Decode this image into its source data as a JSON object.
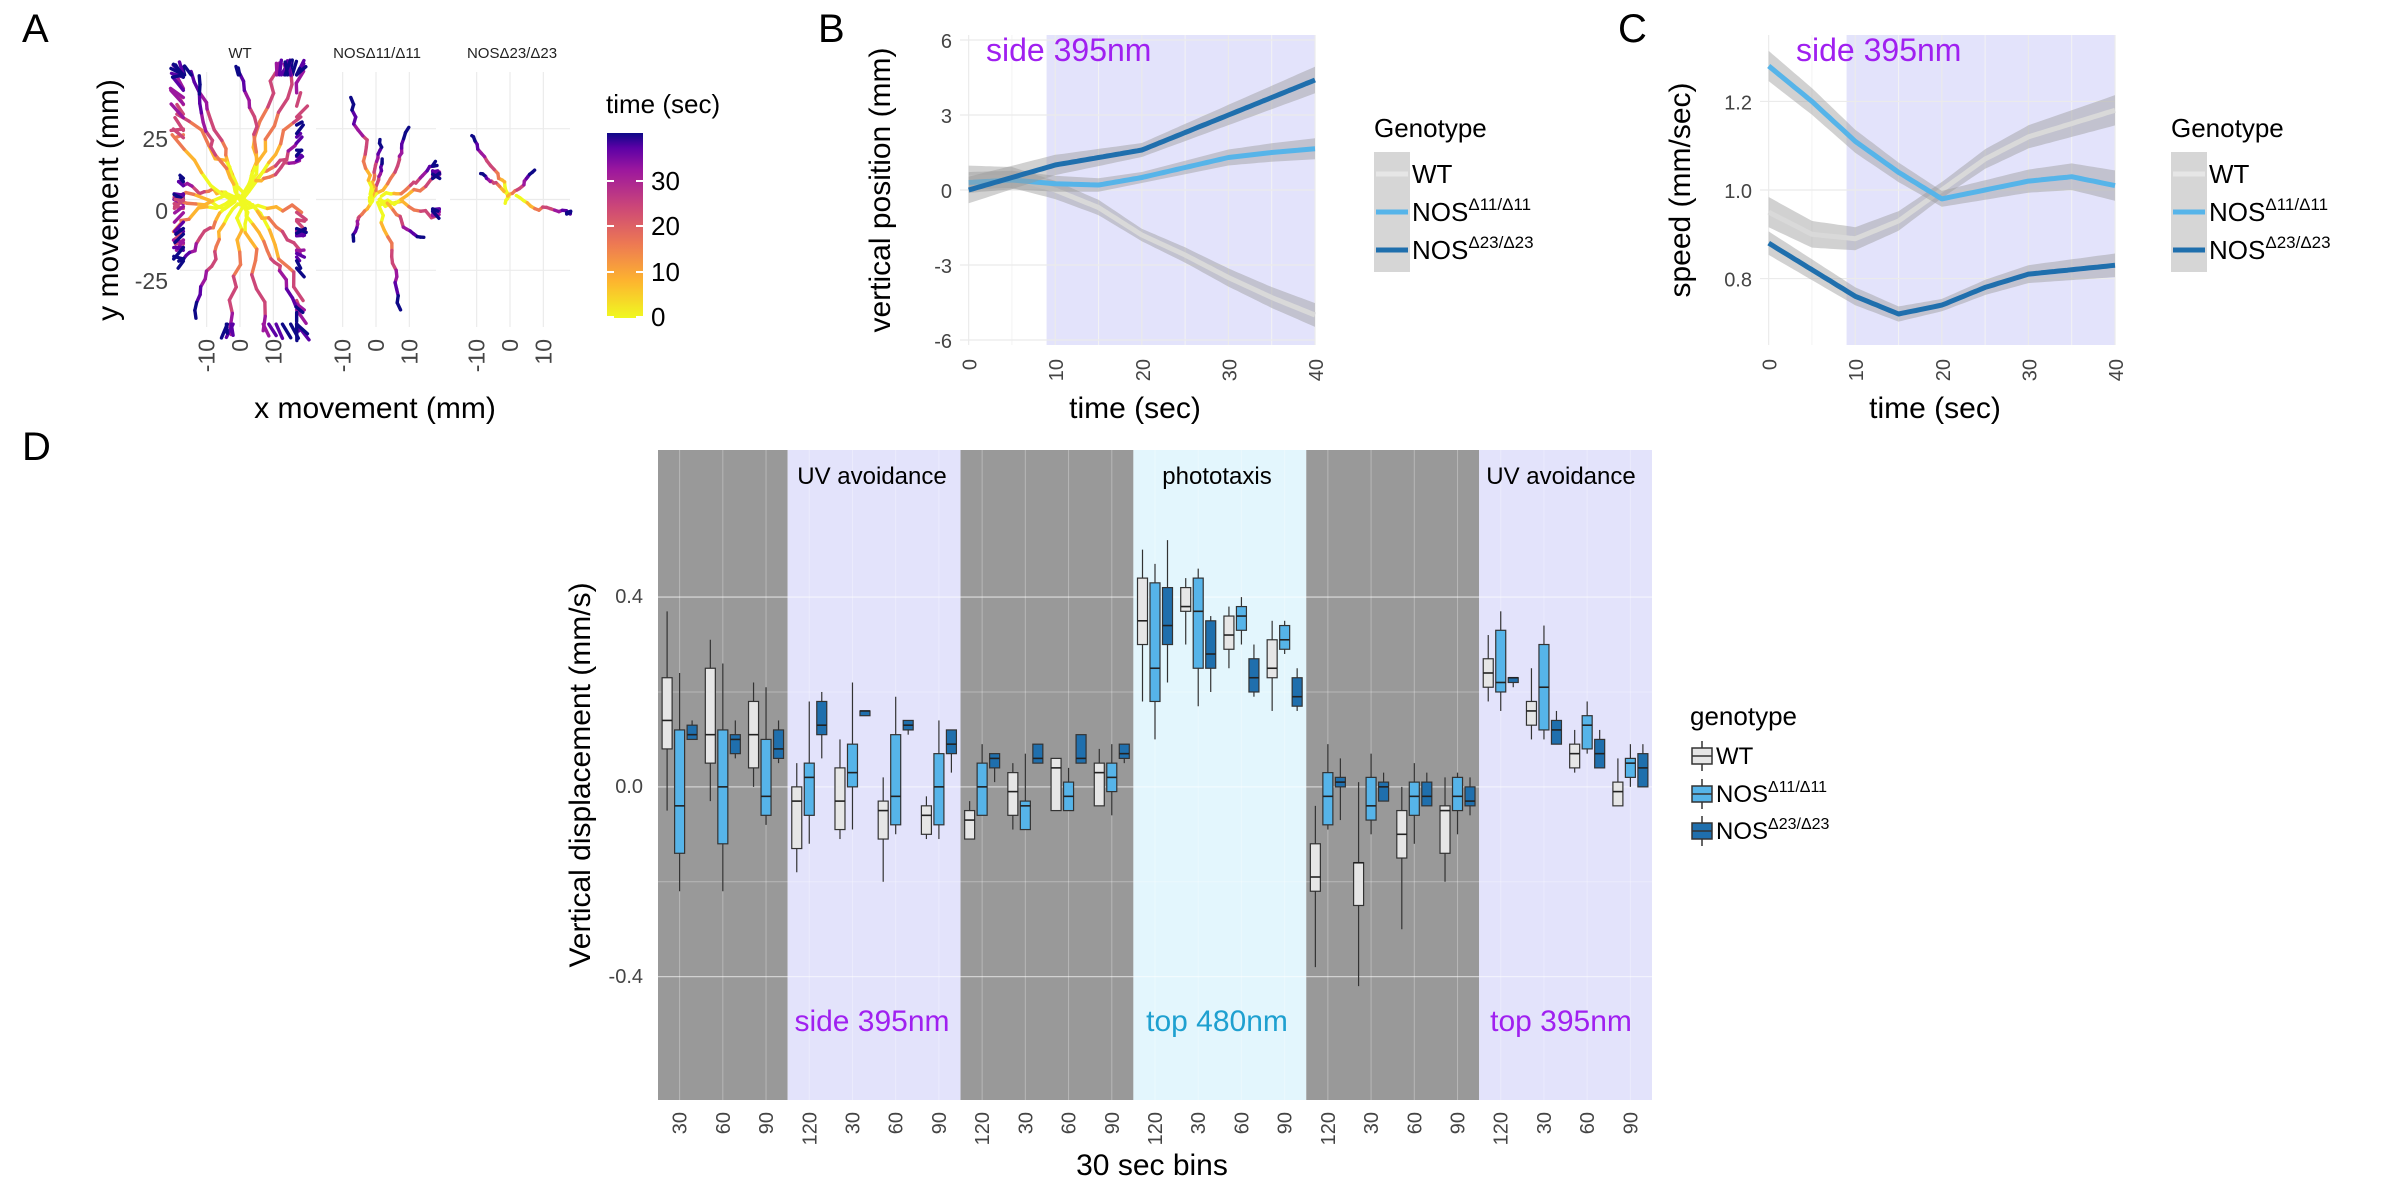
{
  "colors": {
    "wt": "#e6e6e6",
    "nos11": "#56b4e9",
    "nos23": "#1f6fad",
    "uv_band": "#e3e3fb",
    "dark_band": "#999999",
    "blue_band": "#e3f6fd",
    "uv_text": "#a020f0",
    "blue_text": "#1ea0d0"
  },
  "labels": {
    "A": "A",
    "B": "B",
    "C": "C",
    "D": "D"
  },
  "panelA": {
    "facets": [
      "WT",
      "NOSΔ11/Δ11",
      "NOSΔ23/Δ23"
    ],
    "xlabel": "x movement (mm)",
    "ylabel": "y movement (mm)",
    "xticks": [
      "-10",
      "0",
      "10"
    ],
    "yticks": [
      "25",
      "0",
      "-25"
    ],
    "colorbar": {
      "title": "time (sec)",
      "ticks": [
        "30",
        "20",
        "10",
        "0"
      ]
    }
  },
  "panelB": {
    "annotation": "side 395nm",
    "xlabel": "time (sec)",
    "ylabel": "vertical position (mm)",
    "xticks": [
      "0",
      "10",
      "20",
      "30",
      "40"
    ],
    "yticks": [
      "6",
      "3",
      "0",
      "-3",
      "-6"
    ]
  },
  "panelC": {
    "annotation": "side 395nm",
    "xlabel": "time (sec)",
    "ylabel": "speed (mm/sec)",
    "xticks": [
      "0",
      "10",
      "20",
      "30",
      "40"
    ],
    "yticks": [
      "1.2",
      "1.0",
      "0.8"
    ]
  },
  "legend": {
    "title": "Genotype",
    "items": [
      {
        "base": "WT",
        "sup": ""
      },
      {
        "base": "NOS",
        "sup": "Δ11/Δ11"
      },
      {
        "base": "NOS",
        "sup": "Δ23/Δ23"
      }
    ]
  },
  "panelD": {
    "ylabel": "Vertical displacement (mm/s)",
    "xlabel": "30 sec bins",
    "yticks": [
      "0.4",
      "0.0",
      "-0.4"
    ],
    "legend_title": "genotype",
    "phases": [
      {
        "top": "",
        "bottom": ""
      },
      {
        "top": "UV avoidance",
        "bottom": "side 395nm"
      },
      {
        "top": "",
        "bottom": ""
      },
      {
        "top": "phototaxis",
        "bottom": "top 480nm"
      },
      {
        "top": "",
        "bottom": ""
      },
      {
        "top": "UV avoidance",
        "bottom": "top 395nm"
      }
    ]
  },
  "chart_data": [
    {
      "panel": "A",
      "type": "scatter",
      "facets": [
        "WT",
        "NOSΔ11/Δ11",
        "NOSΔ23/Δ23"
      ],
      "xlabel": "x movement (mm)",
      "ylabel": "y movement (mm)",
      "xlim": [
        -18,
        18
      ],
      "ylim": [
        -45,
        45
      ],
      "color_scale": {
        "name": "time (sec)",
        "range": [
          0,
          40
        ]
      }
    },
    {
      "panel": "B",
      "type": "line",
      "xlabel": "time (sec)",
      "ylabel": "vertical position (mm)",
      "xlim": [
        -1,
        40
      ],
      "ylim": [
        -6.2,
        6.2
      ],
      "stimulus": {
        "label": "side 395nm",
        "from": 9,
        "to": 40
      },
      "x": [
        0,
        5,
        10,
        15,
        20,
        25,
        30,
        35,
        40
      ],
      "series": [
        {
          "name": "WT",
          "values": [
            0.5,
            0.5,
            0.0,
            -0.7,
            -1.8,
            -2.6,
            -3.5,
            -4.3,
            -5.0
          ]
        },
        {
          "name": "NOSΔ11/Δ11",
          "values": [
            0.3,
            0.4,
            0.25,
            0.2,
            0.5,
            0.9,
            1.3,
            1.5,
            1.65
          ]
        },
        {
          "name": "NOSΔ23/Δ23",
          "values": [
            0.0,
            0.5,
            1.0,
            1.3,
            1.6,
            2.3,
            3.0,
            3.7,
            4.4
          ]
        }
      ]
    },
    {
      "panel": "C",
      "type": "line",
      "xlabel": "time (sec)",
      "ylabel": "speed (mm/sec)",
      "xlim": [
        -1,
        40
      ],
      "ylim": [
        0.65,
        1.35
      ],
      "stimulus": {
        "label": "side 395nm",
        "from": 9,
        "to": 40
      },
      "x": [
        0,
        5,
        10,
        15,
        20,
        25,
        30,
        35,
        40
      ],
      "series": [
        {
          "name": "WT",
          "values": [
            0.95,
            0.9,
            0.89,
            0.93,
            1.0,
            1.07,
            1.12,
            1.15,
            1.18
          ]
        },
        {
          "name": "NOSΔ11/Δ11",
          "values": [
            1.28,
            1.2,
            1.11,
            1.04,
            0.98,
            1.0,
            1.02,
            1.03,
            1.01
          ]
        },
        {
          "name": "NOSΔ23/Δ23",
          "values": [
            0.88,
            0.82,
            0.76,
            0.72,
            0.74,
            0.78,
            0.81,
            0.82,
            0.83
          ]
        }
      ]
    },
    {
      "panel": "D",
      "type": "box",
      "xlabel": "30 sec bins",
      "ylabel": "Vertical displacement (mm/s)",
      "ylim": [
        -0.66,
        0.71
      ],
      "categories": [
        "30",
        "60",
        "90",
        "120",
        "30",
        "60",
        "90",
        "120",
        "30",
        "60",
        "90",
        "120",
        "30",
        "60",
        "90",
        "120",
        "30",
        "60",
        "90",
        "120",
        "30",
        "60",
        "90"
      ],
      "series": [
        {
          "name": "WT",
          "boxes": [
            [
              -0.05,
              0.08,
              0.14,
              0.23,
              0.37
            ],
            [
              -0.03,
              0.05,
              0.11,
              0.25,
              0.31
            ],
            [
              0.0,
              0.04,
              0.11,
              0.18,
              0.22
            ],
            [
              -0.18,
              -0.13,
              -0.03,
              0.0,
              0.05
            ],
            [
              -0.11,
              -0.09,
              -0.03,
              0.04,
              0.1
            ],
            [
              -0.2,
              -0.11,
              -0.05,
              -0.03,
              0.02
            ],
            [
              -0.11,
              -0.1,
              -0.06,
              -0.04,
              -0.02
            ],
            [
              -0.09,
              -0.11,
              -0.07,
              -0.05,
              -0.03
            ],
            [
              -0.09,
              -0.06,
              -0.01,
              0.03,
              0.05
            ],
            [
              -0.05,
              -0.05,
              0.04,
              0.06,
              0.06
            ],
            [
              -0.03,
              -0.04,
              0.03,
              0.05,
              0.08
            ],
            [
              0.18,
              0.3,
              0.35,
              0.44,
              0.5
            ],
            [
              0.3,
              0.37,
              0.38,
              0.42,
              0.44
            ],
            [
              0.25,
              0.29,
              0.32,
              0.36,
              0.38
            ],
            [
              0.16,
              0.23,
              0.25,
              0.31,
              0.35
            ],
            [
              -0.38,
              -0.22,
              -0.19,
              -0.12,
              -0.04
            ],
            [
              -0.42,
              -0.25,
              -0.16,
              -0.16,
              0.01
            ],
            [
              -0.3,
              -0.15,
              -0.1,
              -0.05,
              0.0
            ],
            [
              -0.2,
              -0.14,
              -0.05,
              -0.04,
              0.02
            ],
            [
              0.18,
              0.21,
              0.24,
              0.27,
              0.32
            ],
            [
              0.1,
              0.13,
              0.16,
              0.18,
              0.25
            ],
            [
              0.03,
              0.04,
              0.07,
              0.09,
              0.12
            ],
            [
              -0.04,
              -0.04,
              -0.01,
              0.01,
              0.06
            ]
          ]
        },
        {
          "name": "NOSΔ11/Δ11",
          "boxes": [
            [
              -0.22,
              -0.14,
              -0.04,
              0.12,
              0.24
            ],
            [
              -0.22,
              -0.12,
              0.0,
              0.12,
              0.26
            ],
            [
              -0.08,
              -0.06,
              -0.02,
              0.1,
              0.21
            ],
            [
              -0.12,
              -0.06,
              0.02,
              0.05,
              0.18
            ],
            [
              -0.09,
              0.0,
              0.03,
              0.09,
              0.22
            ],
            [
              -0.1,
              -0.08,
              -0.02,
              0.11,
              0.19
            ],
            [
              -0.11,
              -0.08,
              0.0,
              0.07,
              0.14
            ],
            [
              -0.06,
              -0.06,
              0.0,
              0.05,
              0.09
            ],
            [
              -0.08,
              -0.09,
              -0.04,
              -0.03,
              0.07
            ],
            [
              -0.04,
              -0.05,
              -0.02,
              0.01,
              0.04
            ],
            [
              -0.06,
              -0.01,
              0.02,
              0.05,
              0.09
            ],
            [
              0.1,
              0.18,
              0.25,
              0.43,
              0.47
            ],
            [
              0.17,
              0.25,
              0.37,
              0.44,
              0.46
            ],
            [
              0.3,
              0.33,
              0.36,
              0.38,
              0.4
            ],
            [
              0.28,
              0.29,
              0.31,
              0.34,
              0.35
            ],
            [
              -0.09,
              -0.08,
              -0.02,
              0.03,
              0.09
            ],
            [
              -0.1,
              -0.07,
              -0.04,
              0.02,
              0.07
            ],
            [
              -0.12,
              -0.06,
              -0.02,
              0.01,
              0.05
            ],
            [
              -0.1,
              -0.05,
              -0.02,
              0.02,
              0.03
            ],
            [
              0.16,
              0.2,
              0.22,
              0.33,
              0.37
            ],
            [
              0.1,
              0.12,
              0.21,
              0.3,
              0.34
            ],
            [
              0.07,
              0.08,
              0.13,
              0.15,
              0.18
            ],
            [
              0.0,
              0.02,
              0.05,
              0.06,
              0.09
            ]
          ]
        },
        {
          "name": "NOSΔ23/Δ23",
          "boxes": [
            [
              0.1,
              0.1,
              0.11,
              0.13,
              0.14
            ],
            [
              0.06,
              0.07,
              0.1,
              0.11,
              0.14
            ],
            [
              0.05,
              0.06,
              0.08,
              0.12,
              0.14
            ],
            [
              0.06,
              0.11,
              0.13,
              0.18,
              0.2
            ],
            [
              0.15,
              0.15,
              0.16,
              0.16,
              0.16
            ],
            [
              0.11,
              0.12,
              0.13,
              0.14,
              0.14
            ],
            [
              0.03,
              0.07,
              0.09,
              0.12,
              0.12
            ],
            [
              0.01,
              0.04,
              0.06,
              0.07,
              0.07
            ],
            [
              0.05,
              0.05,
              0.06,
              0.09,
              0.09
            ],
            [
              0.05,
              0.05,
              0.06,
              0.11,
              0.11
            ],
            [
              0.05,
              0.06,
              0.07,
              0.09,
              0.09
            ],
            [
              0.22,
              0.3,
              0.34,
              0.42,
              0.52
            ],
            [
              0.2,
              0.25,
              0.28,
              0.35,
              0.36
            ],
            [
              0.19,
              0.2,
              0.23,
              0.27,
              0.3
            ],
            [
              0.16,
              0.17,
              0.19,
              0.23,
              0.25
            ],
            [
              -0.07,
              0.0,
              0.01,
              0.02,
              0.06
            ],
            [
              -0.02,
              -0.03,
              0.0,
              0.01,
              0.03
            ],
            [
              -0.02,
              -0.04,
              -0.02,
              0.01,
              0.03
            ],
            [
              -0.06,
              -0.04,
              -0.03,
              0.0,
              0.02
            ],
            [
              0.21,
              0.22,
              0.23,
              0.23,
              0.23
            ],
            [
              0.1,
              0.09,
              0.12,
              0.14,
              0.16
            ],
            [
              0.06,
              0.04,
              0.07,
              0.1,
              0.12
            ],
            [
              0.02,
              0.0,
              0.04,
              0.07,
              0.09
            ]
          ]
        }
      ]
    }
  ]
}
